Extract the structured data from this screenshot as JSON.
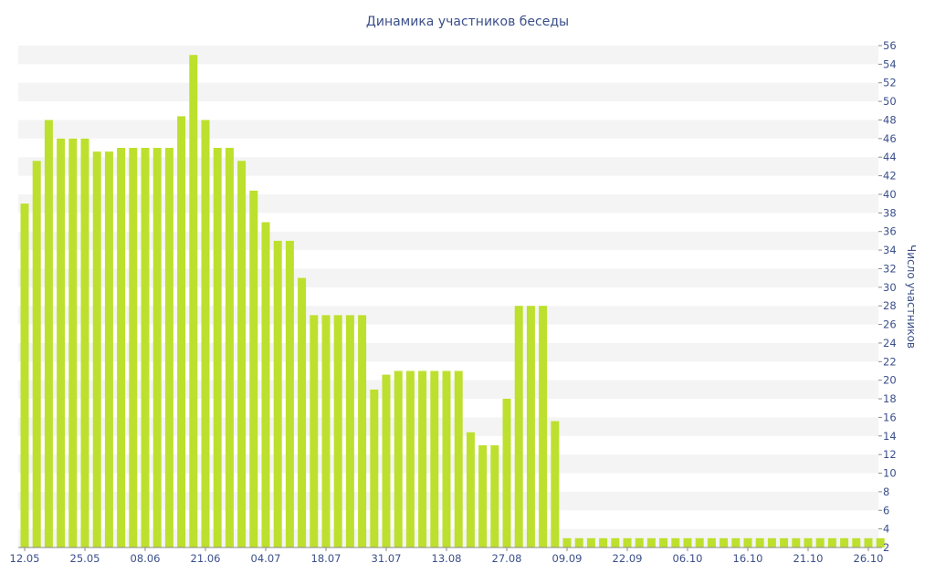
{
  "chart_data": {
    "type": "bar",
    "title": "Динамика участников беседы",
    "xlabel": "",
    "ylabel": "Число участников",
    "ylim": [
      2,
      56
    ],
    "yticks": [
      2,
      4,
      6,
      8,
      10,
      12,
      14,
      16,
      18,
      20,
      22,
      24,
      26,
      28,
      30,
      32,
      34,
      36,
      38,
      40,
      42,
      44,
      46,
      48,
      50,
      52,
      54,
      56
    ],
    "grid": "alternating horizontal bands",
    "y_axis_position": "right",
    "x_tick_labels": [
      "12.05",
      "25.05",
      "08.06",
      "21.06",
      "04.07",
      "18.07",
      "31.07",
      "13.08",
      "27.08",
      "09.09",
      "22.09",
      "06.10",
      "16.10",
      "21.10",
      "26.10"
    ],
    "x_tick_indices": [
      0,
      5,
      10,
      15,
      20,
      25,
      30,
      35,
      40,
      45,
      50,
      55,
      60,
      65,
      70
    ],
    "values": [
      39,
      43.6,
      48,
      46,
      46,
      46,
      44.6,
      44.6,
      45,
      45,
      45,
      45,
      45,
      48.4,
      55,
      48,
      45,
      45,
      43.6,
      40.4,
      37,
      35,
      35,
      31,
      27,
      27,
      27,
      27,
      27,
      19,
      20.6,
      21,
      21,
      21,
      21,
      21,
      21,
      14.4,
      13,
      13,
      18,
      28,
      28,
      28,
      15.6,
      3,
      3,
      3,
      3,
      3,
      3,
      3,
      3,
      3,
      3,
      3,
      3,
      3,
      3,
      3,
      3,
      3,
      3,
      3,
      3,
      3,
      3,
      3,
      3,
      3,
      3,
      3
    ]
  }
}
